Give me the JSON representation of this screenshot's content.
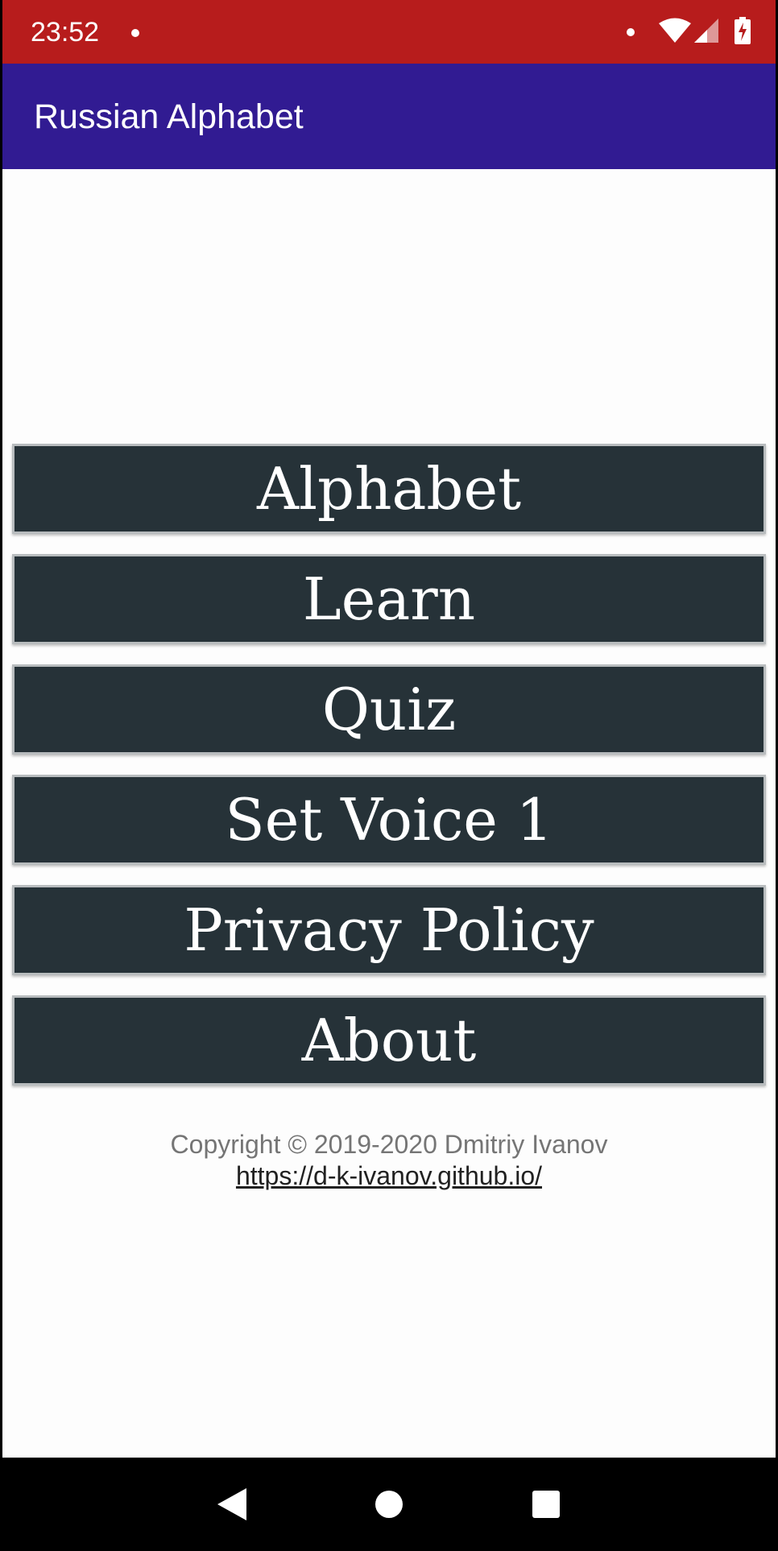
{
  "status_bar": {
    "time": "23:52",
    "icons": [
      "notification-dot-icon",
      "wifi-icon",
      "cell-signal-icon",
      "battery-charging-icon"
    ],
    "background": "#b71c1c"
  },
  "app_bar": {
    "title": "Russian Alphabet",
    "background": "#311b92"
  },
  "menu": {
    "button_background": "#263238",
    "items": [
      {
        "label": "Alphabet"
      },
      {
        "label": "Learn"
      },
      {
        "label": "Quiz"
      },
      {
        "label": "Set Voice 1"
      },
      {
        "label": "Privacy Policy"
      },
      {
        "label": "About"
      }
    ]
  },
  "footer": {
    "copyright": "Copyright © 2019-2020 Dmitriy Ivanov",
    "link": "https://d-k-ivanov.github.io/"
  },
  "nav_bar": {
    "buttons": [
      "back-icon",
      "home-icon",
      "recents-icon"
    ]
  }
}
